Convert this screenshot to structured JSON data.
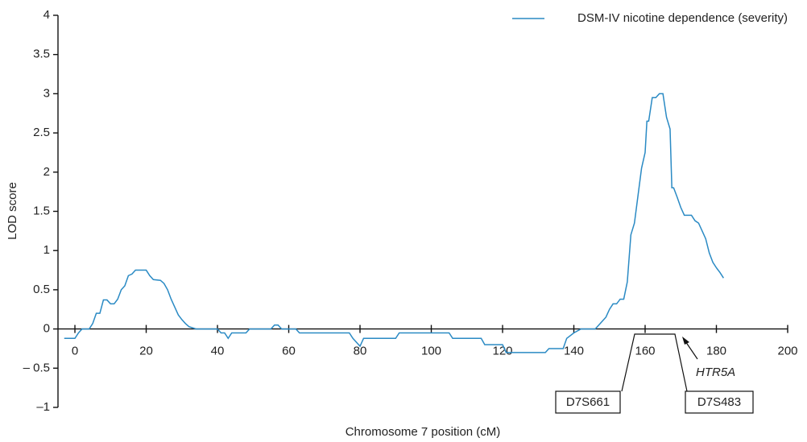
{
  "chart_data": {
    "type": "line",
    "xlabel": "Chromosome 7 position (cM)",
    "ylabel": "LOD score",
    "xlim": [
      -4.75,
      200
    ],
    "ylim": [
      -1,
      4
    ],
    "xticks": [
      0,
      20,
      40,
      60,
      80,
      100,
      120,
      140,
      160,
      180,
      200
    ],
    "yticks": [
      {
        "value": -1,
        "label": "–1"
      },
      {
        "value": -0.5,
        "label": "– 0.5"
      },
      0,
      0.5,
      1,
      1.5,
      2,
      2.5,
      3,
      3.5,
      4
    ],
    "series": [
      {
        "name": "DSM-IV nicotine dependence (severity)",
        "color": "#2a8ac4",
        "x": [
          -3,
          0,
          1,
          2,
          4,
          5,
          6,
          7,
          8,
          9,
          10,
          11,
          12,
          13,
          14,
          15,
          16,
          17,
          20,
          21,
          22,
          24,
          25,
          26,
          27,
          28,
          29,
          30,
          31,
          32,
          34,
          40,
          41,
          42,
          43,
          44,
          48,
          49,
          55,
          56,
          57,
          58,
          62,
          63,
          77,
          78,
          80,
          81,
          90,
          91,
          105,
          106,
          114,
          115,
          120,
          121,
          132,
          133,
          137,
          138,
          140,
          142,
          146,
          147,
          148,
          149,
          150,
          151,
          152,
          153,
          154,
          155,
          156,
          157,
          158,
          159,
          160,
          160.5,
          161,
          162,
          163,
          164,
          165,
          166,
          167,
          167.5,
          168,
          169,
          170,
          171,
          173,
          174,
          175,
          176,
          177,
          178,
          179,
          180,
          181,
          182
        ],
        "values": [
          -0.12,
          -0.12,
          -0.05,
          0,
          0,
          0.07,
          0.2,
          0.2,
          0.37,
          0.37,
          0.32,
          0.32,
          0.38,
          0.5,
          0.55,
          0.68,
          0.7,
          0.75,
          0.75,
          0.68,
          0.63,
          0.62,
          0.58,
          0.5,
          0.38,
          0.28,
          0.18,
          0.12,
          0.07,
          0.03,
          0,
          0,
          -0.05,
          -0.05,
          -0.12,
          -0.05,
          -0.05,
          0,
          0,
          0.05,
          0.05,
          0,
          0,
          -0.05,
          -0.05,
          -0.12,
          -0.22,
          -0.12,
          -0.12,
          -0.05,
          -0.05,
          -0.12,
          -0.12,
          -0.2,
          -0.2,
          -0.3,
          -0.3,
          -0.25,
          -0.25,
          -0.12,
          -0.05,
          0,
          0,
          0.05,
          0.1,
          0.15,
          0.25,
          0.32,
          0.32,
          0.38,
          0.38,
          0.6,
          1.2,
          1.35,
          1.7,
          2.05,
          2.25,
          2.65,
          2.65,
          2.95,
          2.95,
          3,
          3,
          2.7,
          2.55,
          1.8,
          1.8,
          1.68,
          1.55,
          1.45,
          1.45,
          1.38,
          1.35,
          1.25,
          1.15,
          0.97,
          0.85,
          0.78,
          0.72,
          0.65
        ]
      }
    ],
    "annotations": [
      "D7S661",
      "D7S483",
      "HTR5A"
    ]
  }
}
